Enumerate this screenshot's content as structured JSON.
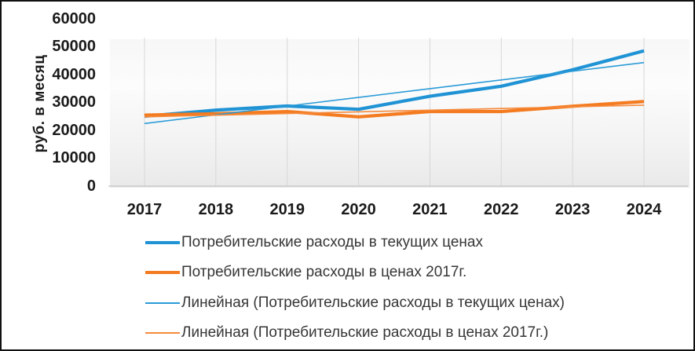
{
  "chart_data": {
    "type": "line",
    "title": "",
    "y_axis_title": "руб. в месяц",
    "categories": [
      "2017",
      "2018",
      "2019",
      "2020",
      "2021",
      "2022",
      "2023",
      "2024"
    ],
    "y_ticks": [
      0,
      10000,
      20000,
      30000,
      40000,
      50000,
      60000
    ],
    "ylim": [
      0,
      60000
    ],
    "grid": "vertical-category-gridlines",
    "legend_position": "bottom-left",
    "colors": {
      "blue": "#2093d5",
      "orange": "#f47b20",
      "gridline": "#d7d7d7",
      "axis_line": "#c4c4c4"
    },
    "series": [
      {
        "name": "Потребительские расходы в текущих ценах",
        "color": "#2093d5",
        "width": 4.2,
        "kind": "data",
        "values": [
          25000,
          27200,
          28700,
          27500,
          32200,
          35800,
          41700,
          48500
        ]
      },
      {
        "name": "Потребительские расходы в ценах 2017г.",
        "color": "#f47b20",
        "width": 4.2,
        "kind": "data",
        "values": [
          25400,
          25900,
          26700,
          24800,
          26700,
          26700,
          28600,
          30300
        ]
      },
      {
        "name": "Линейная (Потребительские расходы в текущих ценах)",
        "color": "#2b9bd8",
        "width": 1.6,
        "kind": "trend",
        "values": [
          22400,
          25529,
          28657,
          31786,
          34914,
          38043,
          41171,
          44300
        ]
      },
      {
        "name": "Линейная (Потребительские расходы в ценах 2017г.)",
        "color": "#f58a3c",
        "width": 1.6,
        "kind": "trend",
        "values": [
          24800,
          25400,
          26000,
          26600,
          27200,
          27800,
          28400,
          29000
        ]
      }
    ]
  }
}
